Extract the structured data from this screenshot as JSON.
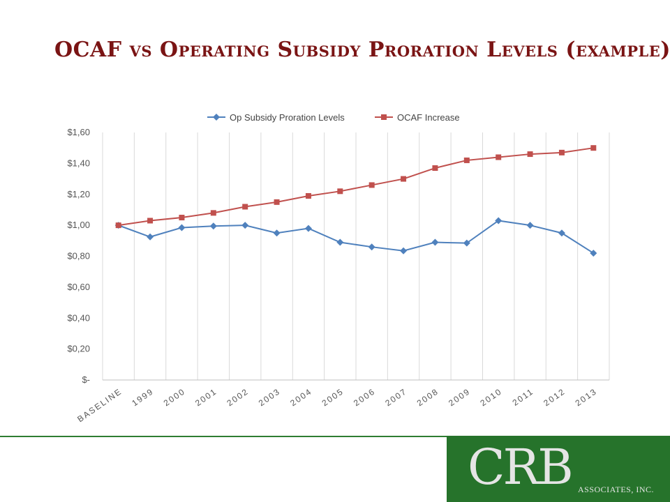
{
  "slide": {
    "title": "OCAF vs Operating Subsidy Proration Levels (example)"
  },
  "chart_data": {
    "type": "line",
    "title": "",
    "xlabel": "",
    "ylabel": "",
    "categories": [
      "BASELINE",
      "1999",
      "2000",
      "2001",
      "2002",
      "2003",
      "2004",
      "2005",
      "2006",
      "2007",
      "2008",
      "2009",
      "2010",
      "2011",
      "2012",
      "2013"
    ],
    "y_tick_labels": [
      "$-",
      "$0,20",
      "$0,40",
      "$0,60",
      "$0,80",
      "$1,00",
      "$1,20",
      "$1,40",
      "$1,60"
    ],
    "ylim": [
      0,
      1.6
    ],
    "grid": "vertical",
    "legend_position": "top",
    "series": [
      {
        "name": "Op Subsidy Proration Levels",
        "marker": "diamond",
        "color": "#4f81bd",
        "values": [
          1.0,
          0.925,
          0.985,
          0.995,
          1.0,
          0.95,
          0.98,
          0.89,
          0.86,
          0.835,
          0.89,
          0.885,
          1.03,
          1.0,
          0.95,
          0.82
        ]
      },
      {
        "name": "OCAF Increase",
        "marker": "square",
        "color": "#c0504d",
        "values": [
          1.0,
          1.03,
          1.05,
          1.08,
          1.12,
          1.15,
          1.19,
          1.22,
          1.26,
          1.3,
          1.37,
          1.42,
          1.44,
          1.46,
          1.47,
          1.5
        ]
      }
    ]
  },
  "logo": {
    "main_text": "CRB",
    "sub_text": "ASSOCIATES, INC."
  }
}
